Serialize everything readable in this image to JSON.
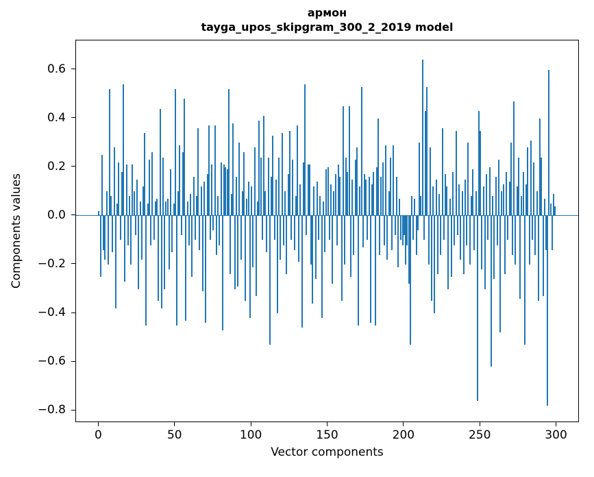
{
  "figure": {
    "title_line1": "армон",
    "title_line2": "tayga_upos_skipgram_300_2_2019 model",
    "xlabel": "Vector components",
    "ylabel": "Components values"
  },
  "chart_data": {
    "type": "bar",
    "title": "армон\ntayga_upos_skipgram_300_2_2019 model",
    "xlabel": "Vector components",
    "ylabel": "Components values",
    "xlim": [
      -15,
      315
    ],
    "ylim": [
      -0.85,
      0.72
    ],
    "x_ticks": [
      0,
      50,
      100,
      150,
      200,
      250,
      300
    ],
    "y_ticks": [
      0.6,
      0.4,
      0.2,
      0.0,
      -0.2,
      -0.4,
      -0.6,
      -0.8
    ],
    "bar_color": "#1f77b4",
    "grid": false,
    "legend": null,
    "values": [
      0.02,
      -0.25,
      0.25,
      -0.14,
      -0.18,
      0.1,
      -0.2,
      0.52,
      0.08,
      -0.15,
      0.28,
      -0.38,
      0.05,
      0.22,
      -0.1,
      0.18,
      0.54,
      -0.27,
      0.21,
      -0.12,
      0.08,
      -0.2,
      0.21,
      0.1,
      -0.08,
      0.15,
      -0.3,
      0.06,
      -0.18,
      0.12,
      0.34,
      -0.45,
      0.05,
      0.23,
      -0.12,
      0.26,
      -0.1,
      0.06,
      0.07,
      -0.35,
      0.44,
      -0.38,
      0.24,
      -0.3,
      0.06,
      0.07,
      -0.22,
      0.19,
      -0.15,
      0.05,
      0.52,
      -0.45,
      0.1,
      0.29,
      -0.08,
      0.26,
      0.48,
      -0.43,
      0.06,
      -0.12,
      0.09,
      -0.25,
      0.16,
      -0.1,
      0.08,
      0.36,
      -0.14,
      0.12,
      -0.31,
      0.14,
      -0.44,
      0.17,
      0.37,
      -0.1,
      0.21,
      -0.06,
      0.37,
      -0.16,
      0.08,
      -0.12,
      0.22,
      -0.47,
      0.21,
      0.2,
      0.19,
      0.52,
      -0.24,
      0.09,
      0.38,
      -0.3,
      0.16,
      -0.29,
      0.3,
      -0.18,
      0.1,
      0.26,
      -0.35,
      0.07,
      0.14,
      -0.42,
      0.12,
      -0.21,
      0.28,
      -0.33,
      0.06,
      0.39,
      0.24,
      -0.1,
      0.41,
      0.1,
      -0.15,
      0.24,
      -0.53,
      0.16,
      0.33,
      -0.1,
      0.15,
      -0.4,
      0.24,
      -0.18,
      0.34,
      -0.12,
      0.1,
      -0.24,
      0.17,
      0.35,
      -0.1,
      0.23,
      -0.14,
      0.08,
      0.37,
      -0.19,
      0.13,
      -0.46,
      0.22,
      0.54,
      -0.08,
      0.21,
      0.21,
      -0.2,
      -0.36,
      0.12,
      -0.26,
      0.14,
      -0.1,
      0.08,
      -0.42,
      0.06,
      -0.15,
      0.19,
      0.2,
      -0.1,
      0.13,
      -0.28,
      0.1,
      0.17,
      -0.12,
      0.21,
      0.16,
      -0.35,
      0.45,
      -0.2,
      0.24,
      0.18,
      0.45,
      -0.25,
      0.15,
      -0.16,
      0.23,
      0.28,
      -0.45,
      0.12,
      0.53,
      -0.13,
      0.17,
      0.15,
      -0.1,
      0.16,
      -0.44,
      0.13,
      0.18,
      -0.45,
      0.2,
      0.4,
      -0.16,
      0.16,
      0.22,
      -0.12,
      0.29,
      -0.18,
      0.1,
      0.24,
      -0.14,
      0.29,
      -0.08,
      0.16,
      -0.21,
      0.07,
      -0.1,
      -0.12,
      -0.08,
      -0.2,
      -0.12,
      -0.28,
      -0.53,
      0.08,
      -0.1,
      0.07,
      -0.16,
      -0.06,
      0.3,
      0.08,
      0.64,
      -0.1,
      0.43,
      0.53,
      -0.2,
      0.28,
      -0.35,
      0.12,
      -0.4,
      0.15,
      -0.24,
      0.09,
      -0.16,
      0.36,
      -0.1,
      0.17,
      0.12,
      -0.3,
      0.07,
      -0.25,
      0.18,
      -0.12,
      0.35,
      -0.08,
      0.13,
      -0.18,
      0.1,
      -0.24,
      0.15,
      -0.12,
      0.3,
      -0.2,
      0.08,
      0.19,
      -0.14,
      0.1,
      -0.76,
      0.43,
      0.35,
      -0.22,
      0.12,
      -0.3,
      0.17,
      -0.1,
      0.2,
      -0.62,
      0.08,
      -0.26,
      0.16,
      -0.12,
      0.23,
      -0.48,
      0.1,
      0.13,
      -0.24,
      0.18,
      -0.1,
      0.14,
      0.3,
      -0.16,
      0.47,
      -0.2,
      0.12,
      0.24,
      -0.34,
      0.08,
      0.18,
      -0.53,
      0.13,
      0.28,
      -0.2,
      0.31,
      -0.1,
      0.22,
      -0.16,
      0.1,
      -0.35,
      0.4,
      0.24,
      -0.33,
      0.07,
      -0.14,
      -0.78,
      0.6,
      0.05,
      -0.14,
      0.09,
      0.04
    ]
  }
}
